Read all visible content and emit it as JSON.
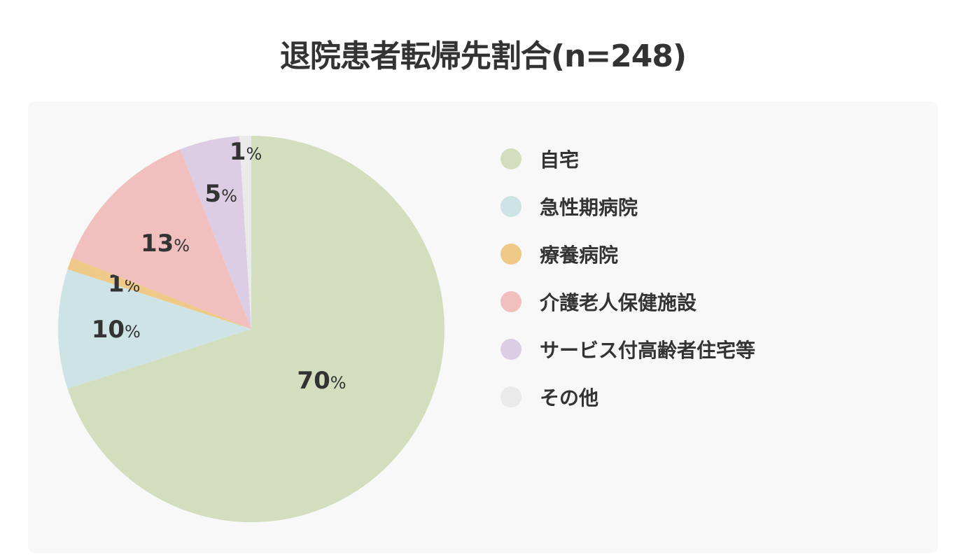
{
  "title": "退院患者転帰先割合(n=248)",
  "chart_data": {
    "type": "pie",
    "categories": [
      "自宅",
      "急性期病院",
      "療養病院",
      "介護老人保健施設",
      "サービス付高齢者住宅等",
      "その他"
    ],
    "values": [
      70,
      10,
      1,
      13,
      5,
      1
    ],
    "labels": [
      "70%",
      "10%",
      "1%",
      "13%",
      "5%",
      "1%"
    ],
    "colors": [
      "#d3debf",
      "#cde3e5",
      "#efc987",
      "#f1bfbd",
      "#dccde4",
      "#eaeaea"
    ],
    "legend_position": "right",
    "start": "12 o'clock",
    "direction": "clockwise"
  }
}
